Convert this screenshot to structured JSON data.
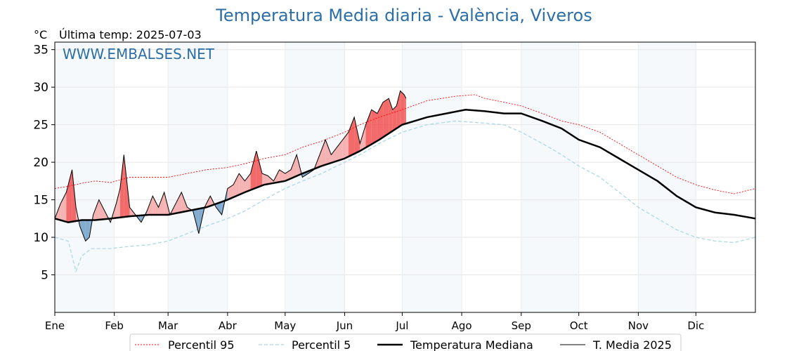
{
  "chart_data": {
    "type": "line",
    "title": "Temperatura Media diaria - València, Viveros",
    "ylabel": "°C",
    "last_update": "Última temp: 2025-07-03",
    "watermark": "WWW.EMBALSES.NET",
    "ylim": [
      0,
      36
    ],
    "y_ticks": [
      5,
      10,
      15,
      20,
      25,
      30,
      35
    ],
    "x_range_days": [
      1,
      366
    ],
    "months": [
      {
        "label": "Ene",
        "day": 1
      },
      {
        "label": "Feb",
        "day": 32
      },
      {
        "label": "Mar",
        "day": 60
      },
      {
        "label": "Abr",
        "day": 91
      },
      {
        "label": "May",
        "day": 121
      },
      {
        "label": "Jun",
        "day": 152
      },
      {
        "label": "Jul",
        "day": 182
      },
      {
        "label": "Ago",
        "day": 213
      },
      {
        "label": "Sep",
        "day": 244
      },
      {
        "label": "Oct",
        "day": 274
      },
      {
        "label": "Nov",
        "day": 305
      },
      {
        "label": "Dic",
        "day": 335
      }
    ],
    "grid": true,
    "legend_position": "bottom",
    "colors": {
      "p95": "#ff0000",
      "p5": "#add8e6",
      "median": "#000000",
      "current": "#000000",
      "above_fill": "#f4a6a6",
      "above_fill_strong": "#f05050",
      "below_fill": "#6fa0c8",
      "band": "#dbe8f4"
    },
    "series": [
      {
        "name": "Percentil 95",
        "x": [
          1,
          8,
          15,
          22,
          30,
          40,
          50,
          60,
          70,
          80,
          91,
          100,
          110,
          121,
          130,
          140,
          152,
          160,
          170,
          182,
          195,
          210,
          220,
          225,
          235,
          244,
          255,
          265,
          274,
          285,
          295,
          305,
          315,
          325,
          335,
          345,
          355,
          366
        ],
        "y": [
          16.5,
          16.8,
          17.2,
          17.5,
          17.3,
          18,
          18,
          18,
          18.5,
          19,
          19.3,
          19.8,
          20.5,
          21,
          22,
          22.8,
          24,
          25,
          26,
          27,
          28.2,
          28.8,
          29,
          28.5,
          28,
          27.5,
          26.5,
          25.5,
          25,
          24,
          22.5,
          21,
          19.5,
          18,
          17,
          16.3,
          15.8,
          16.5
        ]
      },
      {
        "name": "Percentil 5",
        "x": [
          1,
          8,
          12,
          15,
          20,
          30,
          40,
          50,
          60,
          70,
          80,
          91,
          100,
          110,
          121,
          130,
          140,
          152,
          160,
          170,
          182,
          195,
          210,
          220,
          235,
          244,
          255,
          265,
          274,
          285,
          295,
          305,
          315,
          325,
          335,
          345,
          355,
          366
        ],
        "y": [
          10,
          9.5,
          5.5,
          7.5,
          8.5,
          8.5,
          8.8,
          9,
          9.5,
          10.5,
          11.5,
          12.5,
          13.5,
          15,
          16.5,
          17.5,
          18.5,
          20,
          21,
          22.5,
          24,
          25,
          25.5,
          25.3,
          25,
          24,
          22.5,
          21,
          19.5,
          18,
          16,
          14,
          12.5,
          11,
          10,
          9.5,
          9.3,
          10
        ]
      },
      {
        "name": "Temperatura Mediana",
        "x": [
          1,
          8,
          15,
          22,
          30,
          40,
          50,
          60,
          70,
          80,
          91,
          100,
          110,
          121,
          130,
          140,
          152,
          160,
          170,
          182,
          195,
          205,
          215,
          225,
          235,
          244,
          255,
          265,
          274,
          285,
          295,
          305,
          315,
          325,
          335,
          345,
          355,
          366
        ],
        "y": [
          12.5,
          12,
          12.3,
          12.3,
          12.5,
          12.8,
          13,
          13,
          13.5,
          14,
          15,
          16,
          17,
          17.5,
          18.5,
          19.5,
          20.5,
          21.5,
          23,
          25,
          26,
          26.5,
          27,
          26.8,
          26.5,
          26.5,
          25.5,
          24.5,
          23,
          22,
          20.5,
          19,
          17.5,
          15.5,
          14,
          13.3,
          13,
          12.5
        ]
      },
      {
        "name": "T. Media 2025",
        "x": [
          1,
          4,
          7,
          10,
          12,
          14,
          17,
          19,
          21,
          24,
          27,
          30,
          33,
          35,
          37,
          40,
          43,
          46,
          49,
          52,
          55,
          58,
          61,
          64,
          67,
          70,
          73,
          76,
          79,
          82,
          85,
          88,
          91,
          94,
          97,
          100,
          103,
          106,
          109,
          112,
          115,
          118,
          121,
          124,
          127,
          130,
          133,
          136,
          139,
          142,
          145,
          148,
          151,
          154,
          157,
          160,
          163,
          166,
          169,
          172,
          175,
          177,
          179,
          181,
          183,
          184
        ],
        "y": [
          12.5,
          14.5,
          16,
          19,
          14,
          11.5,
          9.5,
          10,
          13,
          15,
          13.5,
          12,
          14.5,
          16.5,
          21,
          14,
          13,
          12,
          13.5,
          15.5,
          14,
          16,
          13,
          14.5,
          16,
          14,
          13.5,
          10.5,
          14,
          15.5,
          14,
          13,
          16.5,
          17,
          18.5,
          17.5,
          18.5,
          21.5,
          18.5,
          18.2,
          17.5,
          19,
          18.5,
          19,
          21,
          18,
          18.5,
          19,
          21,
          23,
          21,
          22,
          23,
          24,
          26,
          22.5,
          25,
          27,
          26.5,
          28,
          28.5,
          27,
          27.5,
          29.5,
          29,
          28.5
        ]
      }
    ]
  }
}
